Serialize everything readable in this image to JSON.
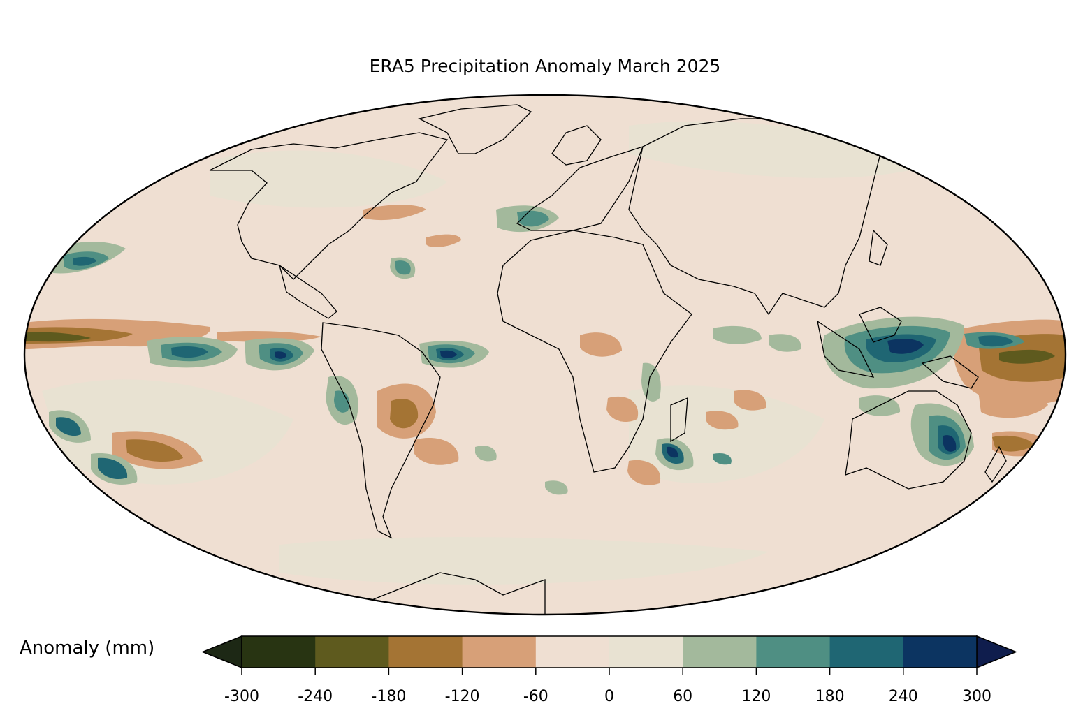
{
  "title": "ERA5 Precipitation Anomaly March 2025",
  "colorbar": {
    "label": "Anomaly (mm)",
    "ticks": [
      "-300",
      "-240",
      "-180",
      "-120",
      "-60",
      "0",
      "60",
      "120",
      "180",
      "240",
      "300"
    ],
    "bins": [
      {
        "from": -300,
        "to": -240,
        "color": "#283412"
      },
      {
        "from": -240,
        "to": -180,
        "color": "#5e5a1e"
      },
      {
        "from": -180,
        "to": -120,
        "color": "#a47434"
      },
      {
        "from": -120,
        "to": -60,
        "color": "#d7a078"
      },
      {
        "from": -60,
        "to": 0,
        "color": "#efdfd2"
      },
      {
        "from": 0,
        "to": 60,
        "color": "#e8e2d2"
      },
      {
        "from": 60,
        "to": 120,
        "color": "#a3b99c"
      },
      {
        "from": 120,
        "to": 180,
        "color": "#4f8f83"
      },
      {
        "from": 180,
        "to": 240,
        "color": "#1f6673"
      },
      {
        "from": 240,
        "to": 300,
        "color": "#0c3461"
      }
    ],
    "under_color": "#1d2815",
    "over_color": "#0f1d4d",
    "extend": "both"
  },
  "map": {
    "projection": "Mollweide",
    "background_color": "#efdfd2"
  }
}
